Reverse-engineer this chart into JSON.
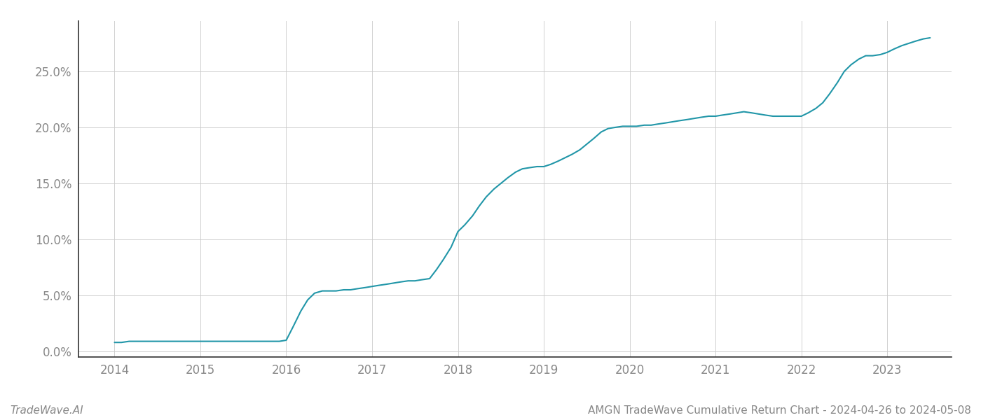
{
  "title": "AMGN TradeWave Cumulative Return Chart - 2024-04-26 to 2024-05-08",
  "watermark": "TradeWave.AI",
  "line_color": "#2196a8",
  "background_color": "#ffffff",
  "grid_color": "#cccccc",
  "x_values": [
    2014.0,
    2014.08,
    2014.17,
    2014.25,
    2014.33,
    2014.42,
    2014.5,
    2014.58,
    2014.67,
    2014.75,
    2014.83,
    2014.92,
    2015.0,
    2015.08,
    2015.17,
    2015.25,
    2015.33,
    2015.42,
    2015.5,
    2015.58,
    2015.67,
    2015.75,
    2015.83,
    2015.92,
    2016.0,
    2016.08,
    2016.17,
    2016.25,
    2016.33,
    2016.42,
    2016.5,
    2016.58,
    2016.67,
    2016.75,
    2016.83,
    2016.92,
    2017.0,
    2017.08,
    2017.17,
    2017.25,
    2017.33,
    2017.42,
    2017.5,
    2017.58,
    2017.67,
    2017.75,
    2017.83,
    2017.92,
    2018.0,
    2018.08,
    2018.17,
    2018.25,
    2018.33,
    2018.42,
    2018.5,
    2018.58,
    2018.67,
    2018.75,
    2018.83,
    2018.92,
    2019.0,
    2019.08,
    2019.17,
    2019.25,
    2019.33,
    2019.42,
    2019.5,
    2019.58,
    2019.67,
    2019.75,
    2019.83,
    2019.92,
    2020.0,
    2020.08,
    2020.17,
    2020.25,
    2020.33,
    2020.42,
    2020.5,
    2020.58,
    2020.67,
    2020.75,
    2020.83,
    2020.92,
    2021.0,
    2021.08,
    2021.17,
    2021.25,
    2021.33,
    2021.42,
    2021.5,
    2021.58,
    2021.67,
    2021.75,
    2021.83,
    2021.92,
    2022.0,
    2022.08,
    2022.17,
    2022.25,
    2022.33,
    2022.42,
    2022.5,
    2022.58,
    2022.67,
    2022.75,
    2022.83,
    2022.92,
    2023.0,
    2023.08,
    2023.17,
    2023.25,
    2023.33,
    2023.42,
    2023.5
  ],
  "y_values": [
    0.008,
    0.008,
    0.009,
    0.009,
    0.009,
    0.009,
    0.009,
    0.009,
    0.009,
    0.009,
    0.009,
    0.009,
    0.009,
    0.009,
    0.009,
    0.009,
    0.009,
    0.009,
    0.009,
    0.009,
    0.009,
    0.009,
    0.009,
    0.009,
    0.01,
    0.022,
    0.036,
    0.046,
    0.052,
    0.054,
    0.054,
    0.054,
    0.055,
    0.055,
    0.056,
    0.057,
    0.058,
    0.059,
    0.06,
    0.061,
    0.062,
    0.063,
    0.063,
    0.064,
    0.065,
    0.073,
    0.082,
    0.093,
    0.107,
    0.113,
    0.121,
    0.13,
    0.138,
    0.145,
    0.15,
    0.155,
    0.16,
    0.163,
    0.164,
    0.165,
    0.165,
    0.167,
    0.17,
    0.173,
    0.176,
    0.18,
    0.185,
    0.19,
    0.196,
    0.199,
    0.2,
    0.201,
    0.201,
    0.201,
    0.202,
    0.202,
    0.203,
    0.204,
    0.205,
    0.206,
    0.207,
    0.208,
    0.209,
    0.21,
    0.21,
    0.211,
    0.212,
    0.213,
    0.214,
    0.213,
    0.212,
    0.211,
    0.21,
    0.21,
    0.21,
    0.21,
    0.21,
    0.213,
    0.217,
    0.222,
    0.23,
    0.24,
    0.25,
    0.256,
    0.261,
    0.264,
    0.264,
    0.265,
    0.267,
    0.27,
    0.273,
    0.275,
    0.277,
    0.279,
    0.28
  ],
  "xlim": [
    2013.58,
    2023.75
  ],
  "ylim": [
    -0.005,
    0.295
  ],
  "yticks": [
    0.0,
    0.05,
    0.1,
    0.15,
    0.2,
    0.25
  ],
  "xticks": [
    2014,
    2015,
    2016,
    2017,
    2018,
    2019,
    2020,
    2021,
    2022,
    2023
  ],
  "tick_label_color": "#888888",
  "label_color": "#888888",
  "spine_color": "#333333",
  "line_width": 1.5,
  "fig_width": 14.0,
  "fig_height": 6.0,
  "dpi": 100
}
